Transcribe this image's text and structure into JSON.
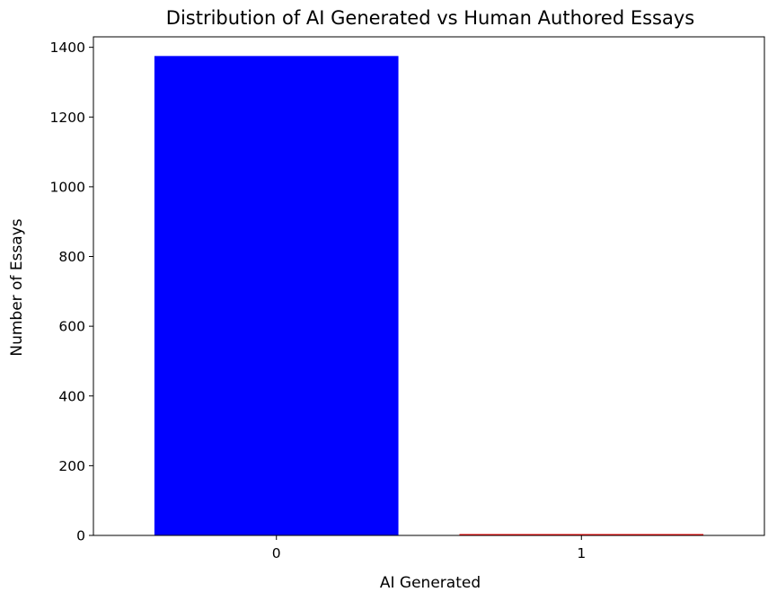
{
  "chart_data": {
    "type": "bar",
    "title": "Distribution of AI Generated vs Human Authored Essays",
    "xlabel": "AI Generated",
    "ylabel": "Number of Essays",
    "categories": [
      "0",
      "1"
    ],
    "values": [
      1375,
      3
    ],
    "bar_colors": [
      "#0000ff",
      "#ff0000"
    ],
    "ylim": [
      0,
      1430
    ],
    "y_ticks": [
      0,
      200,
      400,
      600,
      800,
      1000,
      1200,
      1400
    ],
    "grid": false,
    "legend": "none"
  }
}
